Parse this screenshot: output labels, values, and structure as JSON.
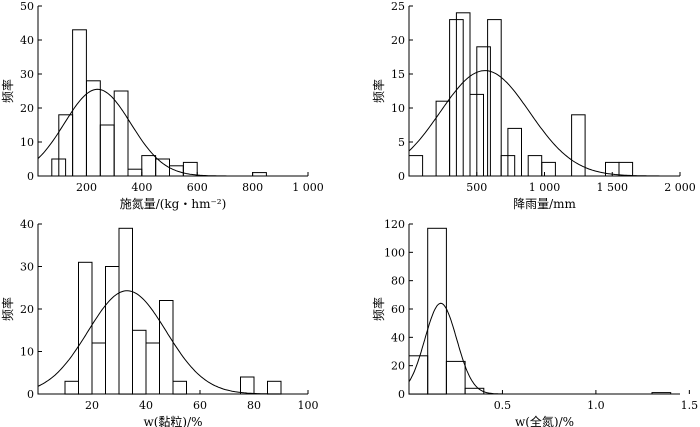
{
  "chart_data": [
    {
      "type": "bar",
      "panel": "top-left",
      "xlabel": "施氮量/(kg・hm⁻²)",
      "ylabel": "频率",
      "xlim": [
        25,
        1000
      ],
      "ylim": [
        0,
        50
      ],
      "xticks": [
        200,
        400,
        600,
        800,
        1000
      ],
      "xtick_labels": [
        "200",
        "400",
        "600",
        "800",
        "1 000"
      ],
      "yticks": [
        0,
        10,
        20,
        30,
        40,
        50
      ],
      "bin_width": 50,
      "bins": [
        {
          "start": 75,
          "value": 5
        },
        {
          "start": 100,
          "value": 18
        },
        {
          "start": 150,
          "value": 43
        },
        {
          "start": 200,
          "value": 28
        },
        {
          "start": 250,
          "value": 15
        },
        {
          "start": 300,
          "value": 25
        },
        {
          "start": 350,
          "value": 2
        },
        {
          "start": 400,
          "value": 6
        },
        {
          "start": 450,
          "value": 5
        },
        {
          "start": 500,
          "value": 3
        },
        {
          "start": 550,
          "value": 4
        },
        {
          "start": 800,
          "value": 1
        }
      ],
      "curve": {
        "mean": 240,
        "sd": 120,
        "peak": 25.5,
        "x_start": 25,
        "x_end": 1000
      }
    },
    {
      "type": "bar",
      "panel": "top-right",
      "xlabel": "降雨量/mm",
      "ylabel": "频率",
      "xlim": [
        0,
        2000
      ],
      "ylim": [
        0,
        25
      ],
      "xticks": [
        500,
        1000,
        1500,
        2000
      ],
      "xtick_labels": [
        "500",
        "1 000",
        "1 500",
        "2 000"
      ],
      "yticks": [
        0,
        5,
        10,
        15,
        20,
        25
      ],
      "bin_width": 100,
      "bins": [
        {
          "start": 0,
          "value": 3
        },
        {
          "start": 200,
          "value": 11
        },
        {
          "start": 300,
          "value": 23
        },
        {
          "start": 350,
          "value": 24
        },
        {
          "start": 450,
          "value": 12
        },
        {
          "start": 500,
          "value": 19
        },
        {
          "start": 580,
          "value": 23
        },
        {
          "start": 680,
          "value": 3
        },
        {
          "start": 730,
          "value": 7
        },
        {
          "start": 880,
          "value": 3
        },
        {
          "start": 980,
          "value": 2
        },
        {
          "start": 1200,
          "value": 9
        },
        {
          "start": 1450,
          "value": 2
        },
        {
          "start": 1550,
          "value": 2
        }
      ],
      "curve": {
        "mean": 560,
        "sd": 330,
        "peak": 15.5,
        "x_start": 0,
        "x_end": 1900
      }
    },
    {
      "type": "bar",
      "panel": "bottom-left",
      "xlabel": "w(黏粒)/%",
      "ylabel": "频率",
      "xlim": [
        0,
        100
      ],
      "ylim": [
        0,
        40
      ],
      "xticks": [
        20,
        40,
        60,
        80,
        100
      ],
      "xtick_labels": [
        "20",
        "40",
        "60",
        "80",
        "100"
      ],
      "yticks": [
        0,
        10,
        20,
        30,
        40
      ],
      "bin_width": 5,
      "bins": [
        {
          "start": 10,
          "value": 3
        },
        {
          "start": 15,
          "value": 31
        },
        {
          "start": 20,
          "value": 12
        },
        {
          "start": 25,
          "value": 30
        },
        {
          "start": 30,
          "value": 39
        },
        {
          "start": 35,
          "value": 15
        },
        {
          "start": 40,
          "value": 12
        },
        {
          "start": 45,
          "value": 22
        },
        {
          "start": 50,
          "value": 3
        },
        {
          "start": 75,
          "value": 4
        },
        {
          "start": 85,
          "value": 3
        }
      ],
      "curve": {
        "mean": 33,
        "sd": 14.5,
        "peak": 24.3,
        "x_start": 0,
        "x_end": 100
      }
    },
    {
      "type": "bar",
      "panel": "bottom-right",
      "xlabel": "w(全氮)/%",
      "ylabel": "频率",
      "xlim": [
        0,
        1.45
      ],
      "ylim": [
        0,
        120
      ],
      "xticks": [
        0.5,
        1.0,
        1.5
      ],
      "xtick_labels": [
        "0.5",
        "1.0",
        "1.5"
      ],
      "yticks": [
        0,
        20,
        40,
        60,
        80,
        100,
        120
      ],
      "bin_width": 0.1,
      "bins": [
        {
          "start": 0,
          "value": 27
        },
        {
          "start": 0.1,
          "value": 117
        },
        {
          "start": 0.2,
          "value": 23
        },
        {
          "start": 0.3,
          "value": 4
        },
        {
          "start": 1.3,
          "value": 1
        }
      ],
      "curve": {
        "mean": 0.17,
        "sd": 0.085,
        "peak": 64,
        "x_start": 0,
        "x_end": 0.75
      }
    }
  ]
}
